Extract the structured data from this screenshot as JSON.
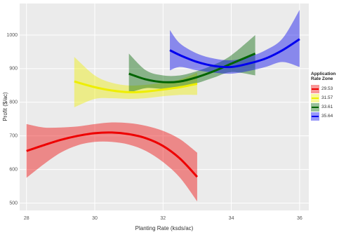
{
  "chart_data": {
    "type": "line",
    "x_label": "Planting Rate (ksds/ac)",
    "y_label": "Profit ($/ac)",
    "legend_title": "Application Rate Zone",
    "xlim": [
      27.8,
      36.27
    ],
    "ylim": [
      478,
      1094
    ],
    "xticks": [
      28,
      30,
      32,
      34,
      36
    ],
    "yticks": [
      500,
      600,
      700,
      800,
      900,
      1000
    ],
    "grid": true,
    "series": [
      {
        "name": "29.53",
        "color": "#ee0000",
        "x": [
          28,
          28.5,
          29,
          29.5,
          30,
          30.5,
          31,
          31.5,
          32,
          32.5,
          33
        ],
        "values": [
          655,
          672,
          688,
          700,
          708,
          710,
          705,
          693,
          670,
          632,
          578
        ],
        "upper": [
          735,
          725,
          725,
          728,
          735,
          740,
          738,
          730,
          715,
          690,
          650
        ],
        "lower": [
          575,
          615,
          650,
          672,
          682,
          682,
          674,
          655,
          622,
          575,
          505
        ]
      },
      {
        "name": "31.57",
        "color": "#eeee00",
        "x": [
          29.4,
          30,
          30.5,
          31,
          31.5,
          32,
          32.5,
          33
        ],
        "values": [
          862,
          845,
          835,
          830,
          832,
          838,
          845,
          855
        ],
        "upper": [
          935,
          880,
          858,
          850,
          852,
          858,
          868,
          888
        ],
        "lower": [
          785,
          810,
          812,
          810,
          812,
          818,
          822,
          822
        ]
      },
      {
        "name": "33.61",
        "color": "#006400",
        "x": [
          31,
          31.5,
          32,
          32.5,
          33,
          33.5,
          34,
          34.7
        ],
        "values": [
          885,
          868,
          860,
          862,
          875,
          893,
          915,
          945
        ],
        "upper": [
          945,
          895,
          880,
          880,
          893,
          912,
          940,
          1000
        ],
        "lower": [
          828,
          842,
          840,
          844,
          857,
          874,
          890,
          880
        ]
      },
      {
        "name": "35.64",
        "color": "#0000ee",
        "x": [
          32.2,
          32.5,
          33,
          33.5,
          34,
          34.5,
          35,
          35.5,
          36
        ],
        "values": [
          955,
          940,
          920,
          908,
          905,
          915,
          930,
          955,
          988
        ],
        "upper": [
          1015,
          975,
          945,
          930,
          925,
          935,
          955,
          990,
          1075
        ],
        "lower": [
          895,
          905,
          895,
          888,
          885,
          893,
          905,
          920,
          905
        ]
      }
    ]
  }
}
